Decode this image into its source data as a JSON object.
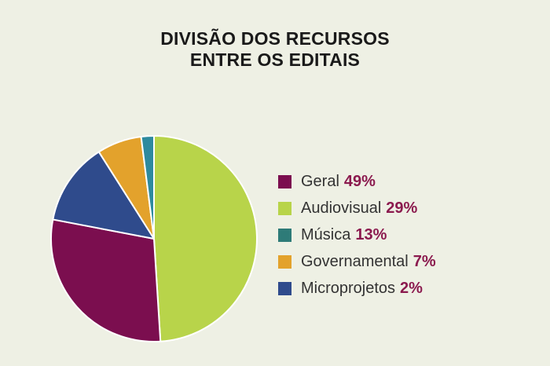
{
  "chart_data": {
    "type": "pie",
    "title": [
      "DIVISÃO DOS RECURSOS",
      "ENTRE OS EDITAIS"
    ],
    "categories": [
      "Geral",
      "Audiovisual",
      "Música",
      "Governamental",
      "Microprojetos"
    ],
    "values": [
      49,
      29,
      13,
      7,
      2
    ],
    "value_labels": [
      "49%",
      "29%",
      "13%",
      "7%",
      "2%"
    ],
    "legend_colors": [
      "#7b0e4f",
      "#b8d44a",
      "#2e7b78",
      "#e3a22c",
      "#2f4b8c"
    ],
    "slices": [
      {
        "value": 49,
        "color": "#b8d44a"
      },
      {
        "value": 29,
        "color": "#7b0e4f"
      },
      {
        "value": 13,
        "color": "#2f4b8c"
      },
      {
        "value": 7,
        "color": "#e3a22c"
      },
      {
        "value": 2,
        "color": "#2e8a9e"
      }
    ],
    "value_label_color": "#8b1a4e",
    "legend_position": "right"
  }
}
